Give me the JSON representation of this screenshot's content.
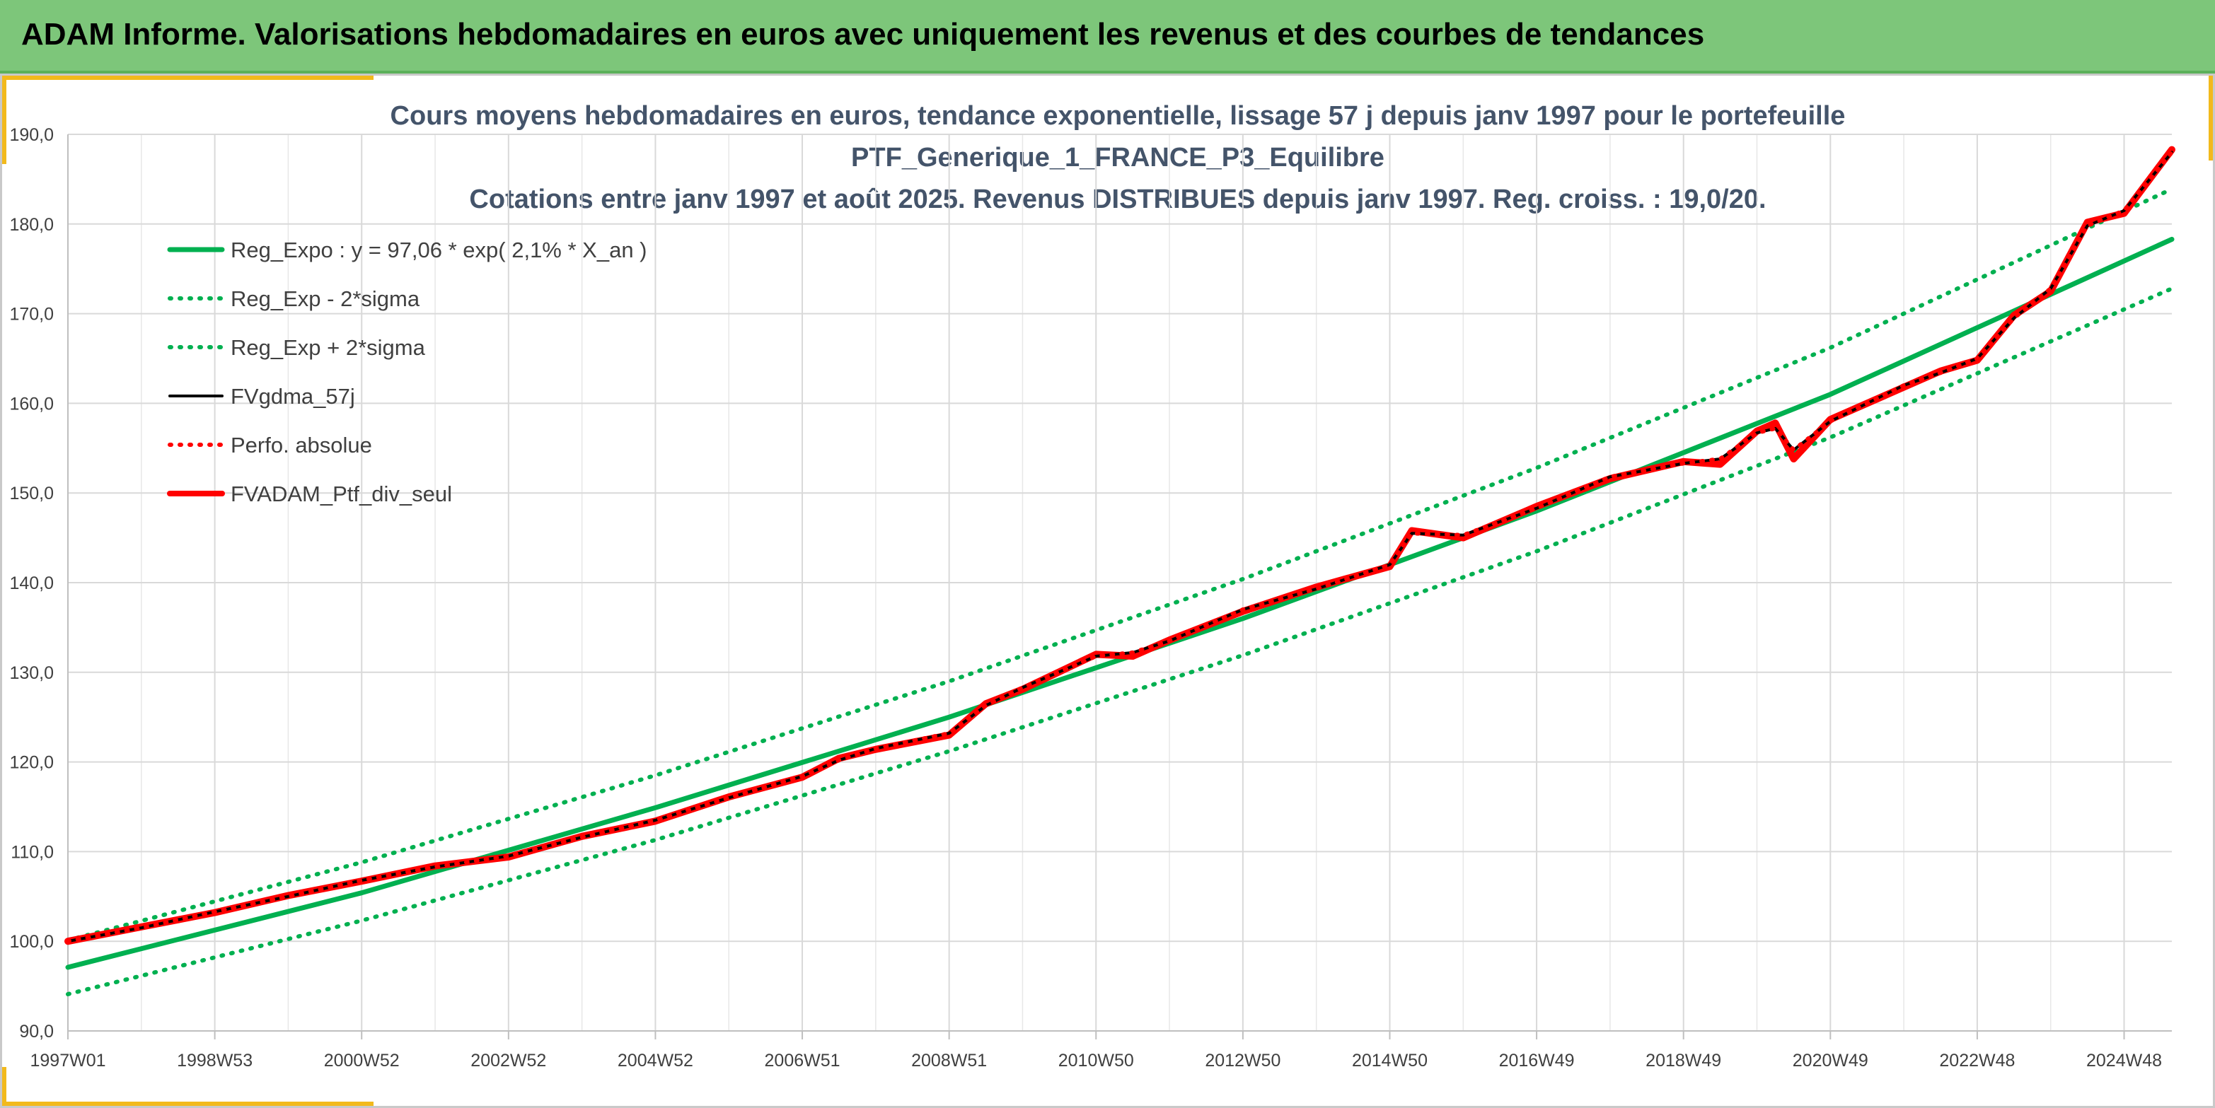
{
  "banner": {
    "title": "ADAM Informe. Valorisations hebdomadaires en euros avec uniquement les revenus et des courbes de tendances"
  },
  "colors": {
    "banner": "#7dc67a",
    "trend": "#00b050",
    "smoothed": "#000000",
    "perf": "#ff0000",
    "portfolio": "#ff0000",
    "accent": "#f2b91c"
  },
  "chart_data": {
    "type": "line",
    "title": [
      "Cours moyens hebdomadaires en euros, tendance exponentielle, lissage 57 j depuis janv 1997 pour le portefeuille",
      "PTF_Generique_1_FRANCE_P3_Equilibre",
      "Cotations entre janv 1997 et août 2025. Revenus DISTRIBUES depuis janv 1997. Reg. croiss. : 19,0/20."
    ],
    "xlabel": "",
    "ylabel": "",
    "ylim": [
      90,
      190
    ],
    "xlim": [
      1997.0,
      2025.65
    ],
    "yticks": [
      "90,0",
      "100,0",
      "110,0",
      "120,0",
      "130,0",
      "140,0",
      "150,0",
      "160,0",
      "170,0",
      "180,0",
      "190,0"
    ],
    "xticks": [
      {
        "label": "1997W01",
        "x": 1997.0
      },
      {
        "label": "1998W53",
        "x": 1999.0
      },
      {
        "label": "2000W52",
        "x": 2001.0
      },
      {
        "label": "2002W52",
        "x": 2003.0
      },
      {
        "label": "2004W52",
        "x": 2005.0
      },
      {
        "label": "2006W51",
        "x": 2007.0
      },
      {
        "label": "2008W51",
        "x": 2009.0
      },
      {
        "label": "2010W50",
        "x": 2011.0
      },
      {
        "label": "2012W50",
        "x": 2013.0
      },
      {
        "label": "2014W50",
        "x": 2015.0
      },
      {
        "label": "2016W49",
        "x": 2017.0
      },
      {
        "label": "2018W49",
        "x": 2019.0
      },
      {
        "label": "2020W49",
        "x": 2021.0
      },
      {
        "label": "2022W48",
        "x": 2023.0
      },
      {
        "label": "2024W48",
        "x": 2025.0
      }
    ],
    "grid": true,
    "legend_position": "upper-left",
    "series": [
      {
        "name": "Reg_Expo : y = 97,06 * exp( 2,1% *  X_an )",
        "style": "solid",
        "color": "#00b050",
        "x": [
          1997,
          2001,
          2005,
          2009,
          2013,
          2017,
          2021,
          2025.65
        ],
        "y": [
          97.1,
          105.4,
          114.9,
          125.0,
          136.0,
          148.0,
          161.0,
          178.3
        ]
      },
      {
        "name": "Reg_Exp - 2*sigma",
        "style": "dotted",
        "color": "#00b050",
        "x": [
          1997,
          2001,
          2005,
          2009,
          2013,
          2017,
          2021,
          2025.65
        ],
        "y": [
          94.1,
          102.3,
          111.3,
          121.2,
          131.9,
          143.5,
          156.2,
          172.8
        ]
      },
      {
        "name": "Reg_Exp + 2*sigma",
        "style": "dotted",
        "color": "#00b050",
        "x": [
          1997,
          2001,
          2005,
          2009,
          2013,
          2017,
          2021,
          2025.65
        ],
        "y": [
          100.1,
          108.8,
          118.5,
          129.0,
          140.4,
          152.8,
          166.2,
          183.9
        ]
      },
      {
        "name": "FVgdma_57j",
        "style": "solid-thin",
        "color": "#000000",
        "x": [
          1997.0,
          1998.0,
          1999.0,
          2000.0,
          2001.0,
          2002.0,
          2003.0,
          2004.0,
          2005.0,
          2006.0,
          2007.0,
          2007.5,
          2008.0,
          2009.0,
          2009.5,
          2010.0,
          2011.0,
          2011.5,
          2012.0,
          2013.0,
          2014.0,
          2015.0,
          2015.3,
          2016.0,
          2017.0,
          2018.0,
          2019.0,
          2019.5,
          2020.0,
          2020.25,
          2020.5,
          2021.0,
          2022.0,
          2022.5,
          2023.0,
          2023.5,
          2024.0,
          2024.5,
          2025.0,
          2025.65
        ],
        "y": [
          100.0,
          101.5,
          103.3,
          105.0,
          106.8,
          108.3,
          109.5,
          111.6,
          113.5,
          116.0,
          118.4,
          120.2,
          121.5,
          123.2,
          126.3,
          128.3,
          131.8,
          132.2,
          133.5,
          137.0,
          139.3,
          142.0,
          145.5,
          145.3,
          148.3,
          151.8,
          153.3,
          153.8,
          156.7,
          157.2,
          154.8,
          158.0,
          162.0,
          163.4,
          165.0,
          169.5,
          172.8,
          179.8,
          181.5,
          188.0
        ]
      },
      {
        "name": "Perfo. absolue",
        "style": "dotted",
        "color": "#ff0000",
        "x": [
          1997.0,
          1998.0,
          1999.0,
          2000.0,
          2001.0,
          2002.0,
          2003.0,
          2004.0,
          2005.0,
          2006.0,
          2007.0,
          2007.5,
          2008.0,
          2009.0,
          2009.5,
          2010.0,
          2011.0,
          2011.5,
          2012.0,
          2013.0,
          2014.0,
          2015.0,
          2015.3,
          2016.0,
          2017.0,
          2018.0,
          2019.0,
          2019.5,
          2020.0,
          2020.25,
          2020.5,
          2021.0,
          2022.0,
          2022.5,
          2023.0,
          2023.5,
          2024.0,
          2024.5,
          2025.0,
          2025.65
        ],
        "y": [
          100.0,
          101.5,
          103.3,
          105.0,
          106.8,
          108.3,
          109.5,
          111.6,
          113.5,
          116.0,
          118.4,
          120.2,
          121.5,
          123.2,
          126.3,
          128.3,
          131.8,
          132.2,
          133.5,
          137.0,
          139.3,
          142.0,
          145.5,
          145.3,
          148.3,
          151.8,
          153.3,
          153.8,
          156.7,
          157.2,
          154.8,
          158.0,
          162.0,
          163.4,
          165.0,
          169.5,
          172.8,
          179.8,
          181.5,
          188.0
        ]
      },
      {
        "name": "FVADAM_Ptf_div_seul",
        "style": "solid-thick",
        "color": "#ff0000",
        "x": [
          1997.0,
          1998.0,
          1999.0,
          2000.0,
          2001.0,
          2002.0,
          2003.0,
          2004.0,
          2005.0,
          2006.0,
          2007.0,
          2007.5,
          2008.0,
          2009.0,
          2009.5,
          2010.0,
          2011.0,
          2011.5,
          2012.0,
          2013.0,
          2014.0,
          2015.0,
          2015.3,
          2016.0,
          2017.0,
          2018.0,
          2019.0,
          2019.5,
          2020.0,
          2020.25,
          2020.5,
          2021.0,
          2022.0,
          2022.5,
          2023.0,
          2023.5,
          2024.0,
          2024.5,
          2025.0,
          2025.65
        ],
        "y": [
          100.0,
          101.6,
          103.2,
          105.1,
          106.7,
          108.4,
          109.4,
          111.7,
          113.4,
          116.1,
          118.3,
          120.4,
          121.4,
          123.0,
          126.5,
          128.1,
          132.0,
          131.8,
          133.6,
          136.8,
          139.5,
          141.8,
          145.8,
          145.0,
          148.5,
          151.6,
          153.5,
          153.2,
          156.9,
          157.8,
          153.8,
          158.2,
          161.8,
          163.6,
          164.8,
          169.8,
          172.5,
          180.2,
          181.2,
          188.3
        ]
      }
    ]
  }
}
